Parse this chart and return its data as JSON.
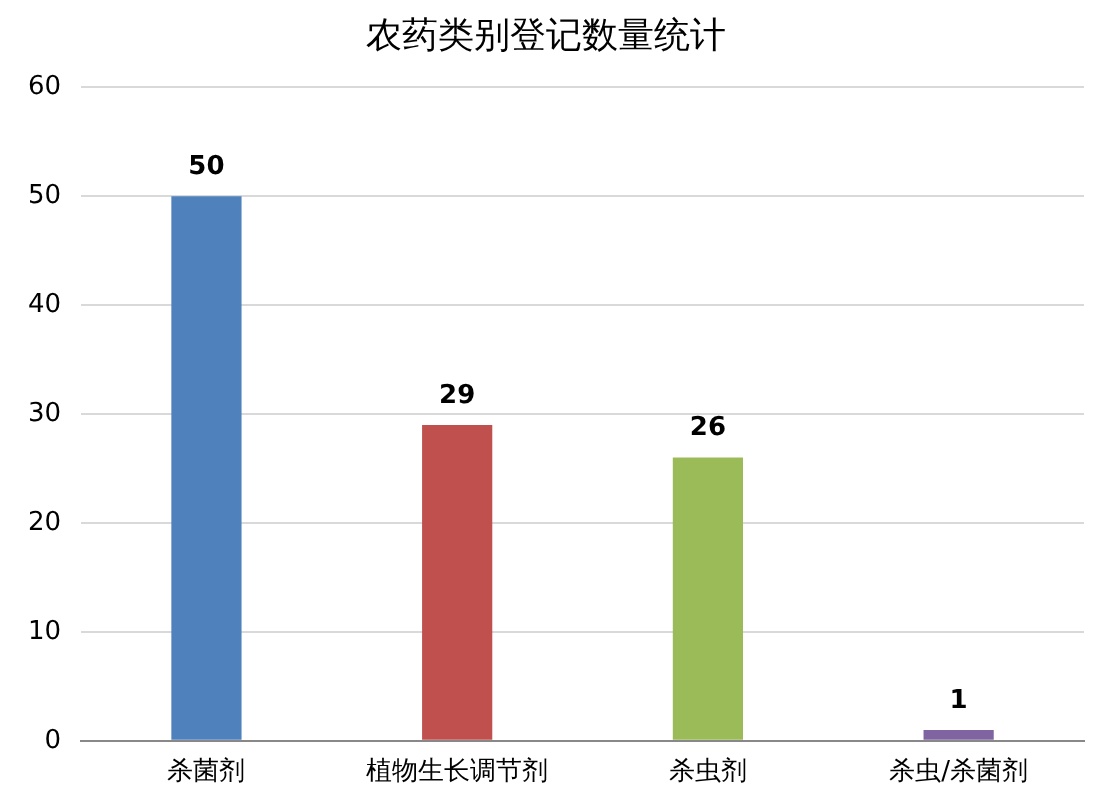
{
  "chart_data": {
    "type": "bar",
    "title": "农药类别登记数量统计",
    "categories": [
      "杀菌剂",
      "植物生长调节剂",
      "杀虫剂",
      "杀虫/杀菌剂"
    ],
    "values": [
      50,
      29,
      26,
      1
    ],
    "colors": [
      "#4f81bd",
      "#c0504d",
      "#9bbb59",
      "#8064a2"
    ],
    "ylim": [
      0,
      60
    ],
    "yticks": [
      0,
      10,
      20,
      30,
      40,
      50,
      60
    ],
    "grid": "y",
    "data_labels": true
  }
}
